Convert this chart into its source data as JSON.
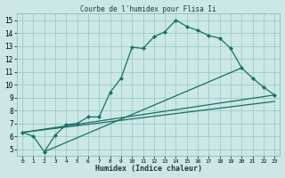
{
  "title": "Courbe de l'humidex pour Flisa Ii",
  "xlabel": "Humidex (Indice chaleur)",
  "xlim": [
    -0.5,
    23.5
  ],
  "ylim": [
    4.5,
    15.5
  ],
  "xticks": [
    0,
    1,
    2,
    3,
    4,
    5,
    6,
    7,
    8,
    9,
    10,
    11,
    12,
    13,
    14,
    15,
    16,
    17,
    18,
    19,
    20,
    21,
    22,
    23
  ],
  "yticks": [
    5,
    6,
    7,
    8,
    9,
    10,
    11,
    12,
    13,
    14,
    15
  ],
  "bg_color": "#cce8e5",
  "grid_color": "#99ccc8",
  "line_color": "#1a6e66",
  "line1_x": [
    0,
    1,
    2,
    3,
    4,
    5,
    6,
    7,
    8,
    9,
    10,
    11,
    12,
    13,
    14,
    15,
    16,
    17,
    18,
    19,
    20,
    21,
    22,
    23
  ],
  "line1_y": [
    6.3,
    6.0,
    4.8,
    6.1,
    6.9,
    7.0,
    7.5,
    7.5,
    9.4,
    10.5,
    12.9,
    12.8,
    13.7,
    14.1,
    15.0,
    14.5,
    14.2,
    13.8,
    13.6,
    12.8,
    11.3,
    10.5,
    9.8,
    9.2
  ],
  "trend1_x": [
    0,
    23
  ],
  "trend1_y": [
    6.3,
    9.2
  ],
  "trend2_x": [
    2,
    20
  ],
  "trend2_y": [
    4.8,
    11.3
  ],
  "trend3_x": [
    0,
    23
  ],
  "trend3_y": [
    6.3,
    8.7
  ]
}
